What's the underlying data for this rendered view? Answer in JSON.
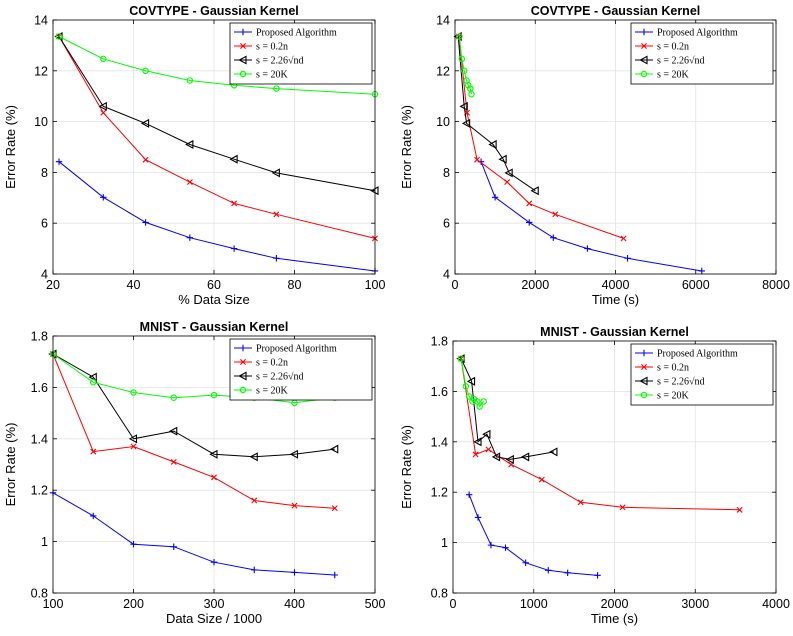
{
  "colors": {
    "proposed": "#0000ff",
    "s_02n": "#ff0000",
    "s_226": "#000000",
    "s_20k": "#00ff00"
  },
  "chart_data": [
    {
      "type": "line",
      "title": "COVTYPE - Gaussian Kernel",
      "xlabel": "% Data Size",
      "ylabel": "Error Rate (%)",
      "xlim": [
        20,
        100
      ],
      "ylim": [
        4,
        14
      ],
      "xticks": [
        20,
        40,
        60,
        80,
        100
      ],
      "yticks": [
        4,
        6,
        8,
        10,
        12,
        14
      ],
      "grid": true,
      "legend_position": "top-right",
      "series": [
        {
          "name": "Proposed Algorithm",
          "color": "#0000ff",
          "marker": "plus",
          "x": [
            21.5,
            32.5,
            43,
            54,
            65,
            75.5,
            100
          ],
          "y": [
            8.42,
            7.02,
            6.03,
            5.43,
            5.0,
            4.62,
            4.12
          ]
        },
        {
          "name": "s = 0.2n",
          "color": "#ff0000",
          "marker": "cross",
          "x": [
            21.5,
            32.5,
            43,
            54,
            65,
            75.5,
            100
          ],
          "y": [
            13.35,
            10.35,
            8.5,
            7.62,
            6.78,
            6.35,
            5.4
          ]
        },
        {
          "name": "s = 2.26√nd",
          "color": "#000000",
          "marker": "triangle-left",
          "x": [
            21.5,
            32.5,
            43,
            54,
            65,
            75.5,
            100
          ],
          "y": [
            13.35,
            10.6,
            9.93,
            9.1,
            8.52,
            7.98,
            7.28
          ]
        },
        {
          "name": "s = 20K",
          "color": "#00ff00",
          "marker": "circle",
          "x": [
            21.5,
            32.5,
            43,
            54,
            65,
            75.5,
            100
          ],
          "y": [
            13.35,
            12.47,
            12.0,
            11.62,
            11.43,
            11.3,
            11.08
          ]
        }
      ]
    },
    {
      "type": "line",
      "title": "COVTYPE - Gaussian Kernel",
      "xlabel": "Time (s)",
      "ylabel": "Error Rate (%)",
      "xlim": [
        0,
        8000
      ],
      "ylim": [
        4,
        14
      ],
      "xticks": [
        0,
        2000,
        4000,
        6000,
        8000
      ],
      "yticks": [
        4,
        6,
        8,
        10,
        12,
        14
      ],
      "grid": true,
      "legend_position": "top-right",
      "series": [
        {
          "name": "Proposed Algorithm",
          "color": "#0000ff",
          "marker": "plus",
          "x": [
            650,
            1000,
            1850,
            2450,
            3300,
            4300,
            6150
          ],
          "y": [
            8.42,
            7.02,
            6.03,
            5.43,
            5.0,
            4.62,
            4.12
          ]
        },
        {
          "name": "s = 0.2n",
          "color": "#ff0000",
          "marker": "cross",
          "x": [
            100,
            300,
            550,
            1300,
            1850,
            2500,
            4200
          ],
          "y": [
            13.35,
            10.35,
            8.5,
            7.62,
            6.78,
            6.35,
            5.4
          ]
        },
        {
          "name": "s = 2.26√nd",
          "color": "#000000",
          "marker": "triangle-left",
          "x": [
            80,
            230,
            290,
            950,
            1200,
            1350,
            2000
          ],
          "y": [
            13.35,
            10.6,
            9.93,
            9.1,
            8.52,
            7.98,
            7.28
          ]
        },
        {
          "name": "s = 20K",
          "color": "#00ff00",
          "marker": "circle",
          "x": [
            110,
            170,
            230,
            290,
            330,
            380,
            410
          ],
          "y": [
            13.35,
            12.47,
            12.0,
            11.62,
            11.43,
            11.3,
            11.08
          ]
        }
      ]
    },
    {
      "type": "line",
      "title": "MNIST - Gaussian Kernel",
      "xlabel": "Data Size / 1000",
      "ylabel": "Error Rate (%)",
      "xlim": [
        100,
        500
      ],
      "ylim": [
        0.8,
        1.8
      ],
      "xticks": [
        100,
        200,
        300,
        400,
        500
      ],
      "yticks": [
        0.8,
        1,
        1.2,
        1.4,
        1.6,
        1.8
      ],
      "grid": true,
      "legend_position": "top-right",
      "series": [
        {
          "name": "Proposed Algorithm",
          "color": "#0000ff",
          "marker": "plus",
          "x": [
            100,
            150,
            200,
            250,
            300,
            350,
            400,
            450
          ],
          "y": [
            1.19,
            1.1,
            0.99,
            0.98,
            0.92,
            0.89,
            0.88,
            0.87
          ]
        },
        {
          "name": "s = 0.2n",
          "color": "#ff0000",
          "marker": "cross",
          "x": [
            100,
            150,
            200,
            250,
            300,
            350,
            400,
            450
          ],
          "y": [
            1.73,
            1.35,
            1.37,
            1.31,
            1.25,
            1.16,
            1.14,
            1.13
          ]
        },
        {
          "name": "s = 2.26√nd",
          "color": "#000000",
          "marker": "triangle-left",
          "x": [
            100,
            150,
            200,
            250,
            300,
            350,
            400,
            450
          ],
          "y": [
            1.73,
            1.64,
            1.4,
            1.43,
            1.34,
            1.33,
            1.34,
            1.36
          ]
        },
        {
          "name": "s = 20K",
          "color": "#00ff00",
          "marker": "circle",
          "x": [
            100,
            150,
            200,
            250,
            300,
            350,
            400,
            450
          ],
          "y": [
            1.73,
            1.62,
            1.58,
            1.56,
            1.57,
            1.56,
            1.54,
            1.56
          ]
        }
      ]
    },
    {
      "type": "line",
      "title": "MNIST - Gaussian Kernel",
      "xlabel": "Time (s)",
      "ylabel": "Error Rate (%)",
      "xlim": [
        0,
        4000
      ],
      "ylim": [
        0.8,
        1.8
      ],
      "xticks": [
        0,
        1000,
        2000,
        3000,
        4000
      ],
      "yticks": [
        0.8,
        1,
        1.2,
        1.4,
        1.6,
        1.8
      ],
      "grid": true,
      "legend_position": "top-right",
      "series": [
        {
          "name": "Proposed Algorithm",
          "color": "#0000ff",
          "marker": "plus",
          "x": [
            200,
            310,
            470,
            650,
            900,
            1180,
            1420,
            1790
          ],
          "y": [
            1.19,
            1.1,
            0.99,
            0.98,
            0.92,
            0.89,
            0.88,
            0.87
          ]
        },
        {
          "name": "s = 0.2n",
          "color": "#ff0000",
          "marker": "cross",
          "x": [
            100,
            280,
            440,
            720,
            1100,
            1580,
            2100,
            3550
          ],
          "y": [
            1.73,
            1.35,
            1.37,
            1.31,
            1.25,
            1.16,
            1.14,
            1.13
          ]
        },
        {
          "name": "s = 2.26√nd",
          "color": "#000000",
          "marker": "triangle-left",
          "x": [
            100,
            230,
            310,
            420,
            540,
            710,
            900,
            1250
          ],
          "y": [
            1.73,
            1.64,
            1.4,
            1.43,
            1.34,
            1.33,
            1.34,
            1.36
          ]
        },
        {
          "name": "s = 20K",
          "color": "#00ff00",
          "marker": "circle",
          "x": [
            100,
            160,
            200,
            240,
            260,
            300,
            330,
            380
          ],
          "y": [
            1.73,
            1.62,
            1.58,
            1.56,
            1.57,
            1.56,
            1.54,
            1.56
          ]
        }
      ]
    }
  ]
}
